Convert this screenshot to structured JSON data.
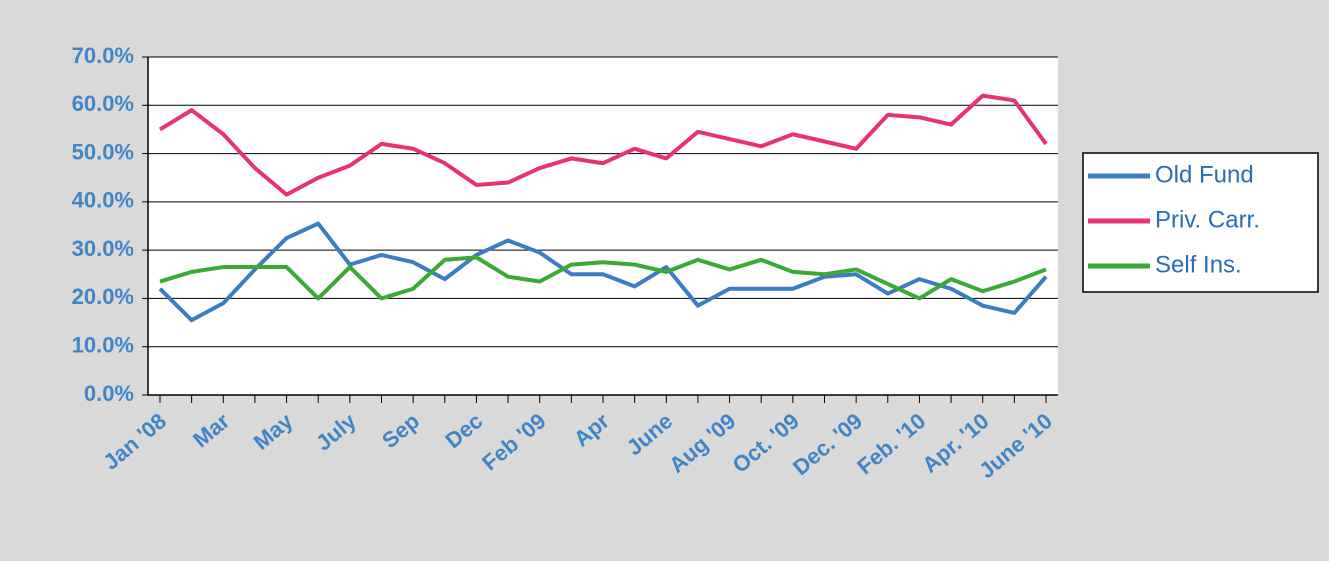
{
  "chart_data": {
    "type": "line",
    "categories": [
      "Jan '08",
      null,
      "Mar",
      null,
      "May",
      null,
      "July",
      null,
      "Sep",
      null,
      "Dec",
      null,
      "Feb '09",
      null,
      "Apr",
      null,
      "June",
      null,
      "Aug '09",
      null,
      "Oct. '09",
      null,
      "Dec. '09",
      null,
      "Feb. '10",
      null,
      "Apr. '10",
      null,
      "June '10"
    ],
    "series": [
      {
        "name": "Old Fund",
        "color": "#3b7dc4",
        "values": [
          22,
          15.5,
          19,
          26,
          32.5,
          35.5,
          27,
          29,
          27.5,
          24,
          29,
          32,
          29.5,
          25,
          25,
          22.5,
          26.5,
          18.5,
          22,
          22,
          22,
          24.5,
          25,
          21,
          24,
          22,
          18.5,
          17,
          24.5
        ]
      },
      {
        "name": "Priv. Carr.",
        "color": "#e8336e",
        "values": [
          55,
          59,
          54,
          47,
          41.5,
          45,
          47.5,
          52,
          51,
          48,
          43.5,
          44,
          47,
          49,
          48,
          51,
          49,
          54.5,
          53,
          51.5,
          54,
          52.5,
          51,
          58,
          57.5,
          56,
          62,
          61,
          52
        ]
      },
      {
        "name": "Self Ins.",
        "color": "#3aaa35",
        "values": [
          23.5,
          25.5,
          26.5,
          26.5,
          26.5,
          20,
          26.5,
          20,
          22,
          28,
          28.5,
          24.5,
          23.5,
          27,
          27.5,
          27,
          25.5,
          28,
          26,
          28,
          25.5,
          25,
          26,
          23,
          20,
          24,
          21.5,
          23.5,
          26
        ]
      }
    ],
    "ylim": [
      0,
      70
    ],
    "yticks": [
      {
        "value": 0,
        "label": "0.0%"
      },
      {
        "value": 10,
        "label": "10.0%"
      },
      {
        "value": 20,
        "label": "20.0%"
      },
      {
        "value": 30,
        "label": "30.0%"
      },
      {
        "value": 40,
        "label": "40.0%"
      },
      {
        "value": 50,
        "label": "50.0%"
      },
      {
        "value": 60,
        "label": "60.0%"
      },
      {
        "value": 70,
        "label": "70.0%"
      }
    ],
    "grid": true,
    "legend": "right"
  }
}
